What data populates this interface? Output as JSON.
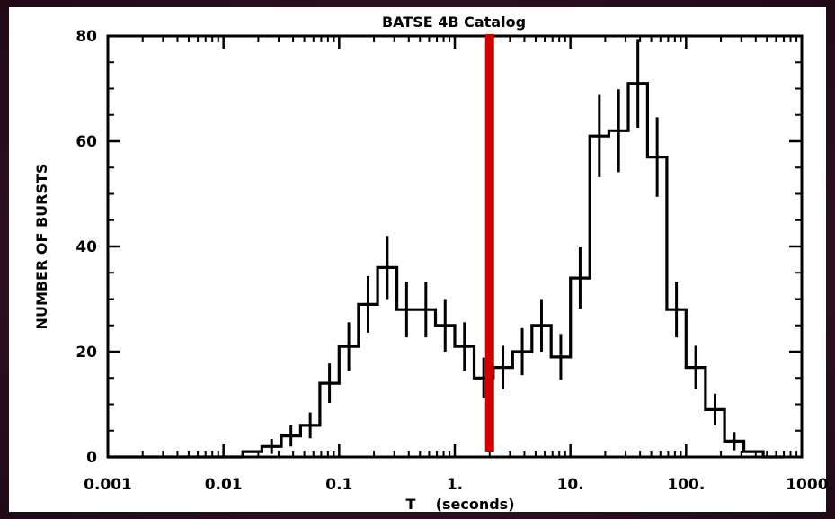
{
  "chart_data": {
    "type": "histogram",
    "title": "BATSE 4B Catalog",
    "xlabel": "T    (seconds)",
    "ylabel": "NUMBER OF BURSTS",
    "xscale": "log",
    "xlim": [
      0.001,
      1000
    ],
    "ylim": [
      0,
      80
    ],
    "xticks": [
      "0.001",
      "0.01",
      "0.1",
      "1.",
      "10.",
      "100.",
      "1000."
    ],
    "yticks": [
      "0",
      "20",
      "40",
      "60",
      "80"
    ],
    "bin_edges": [
      0.0147,
      0.0215,
      0.0316,
      0.0464,
      0.0681,
      0.1,
      0.147,
      0.215,
      0.316,
      0.464,
      0.681,
      1.0,
      1.47,
      2.15,
      3.16,
      4.64,
      6.81,
      10.0,
      14.7,
      21.5,
      31.6,
      46.4,
      68.1,
      100,
      147,
      215,
      316,
      464,
      681
    ],
    "counts": [
      1,
      2,
      4,
      6,
      14,
      21,
      29,
      36,
      28,
      28,
      25,
      21,
      15,
      17,
      20,
      25,
      19,
      34,
      61,
      62,
      71,
      57,
      28,
      17,
      9,
      3,
      1,
      0
    ],
    "error_bars": true,
    "reference_line": {
      "x": 2.0,
      "color": "#cc0000"
    }
  }
}
